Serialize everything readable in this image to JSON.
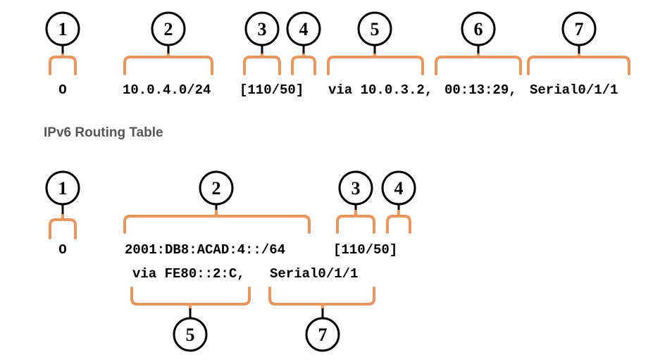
{
  "ipv4": {
    "callouts": [
      "1",
      "2",
      "3",
      "4",
      "5",
      "6",
      "7"
    ],
    "fields": [
      "O",
      "10.0.4.0/24",
      "[110/50]",
      "via 10.0.3.2,",
      "00:13:29,",
      "Serial0/1/1"
    ]
  },
  "ipv6": {
    "heading": "IPv6 Routing Table",
    "callouts_top": [
      "1",
      "2",
      "3",
      "4"
    ],
    "callouts_bottom": [
      "5",
      "7"
    ],
    "line1": [
      "O",
      "2001:DB8:ACAD:4::/64",
      "[110/50]"
    ],
    "line2": [
      "via FE80::2:C,",
      "Serial0/1/1"
    ]
  },
  "colors": {
    "brace": "#e9955b",
    "heading": "#555555"
  }
}
